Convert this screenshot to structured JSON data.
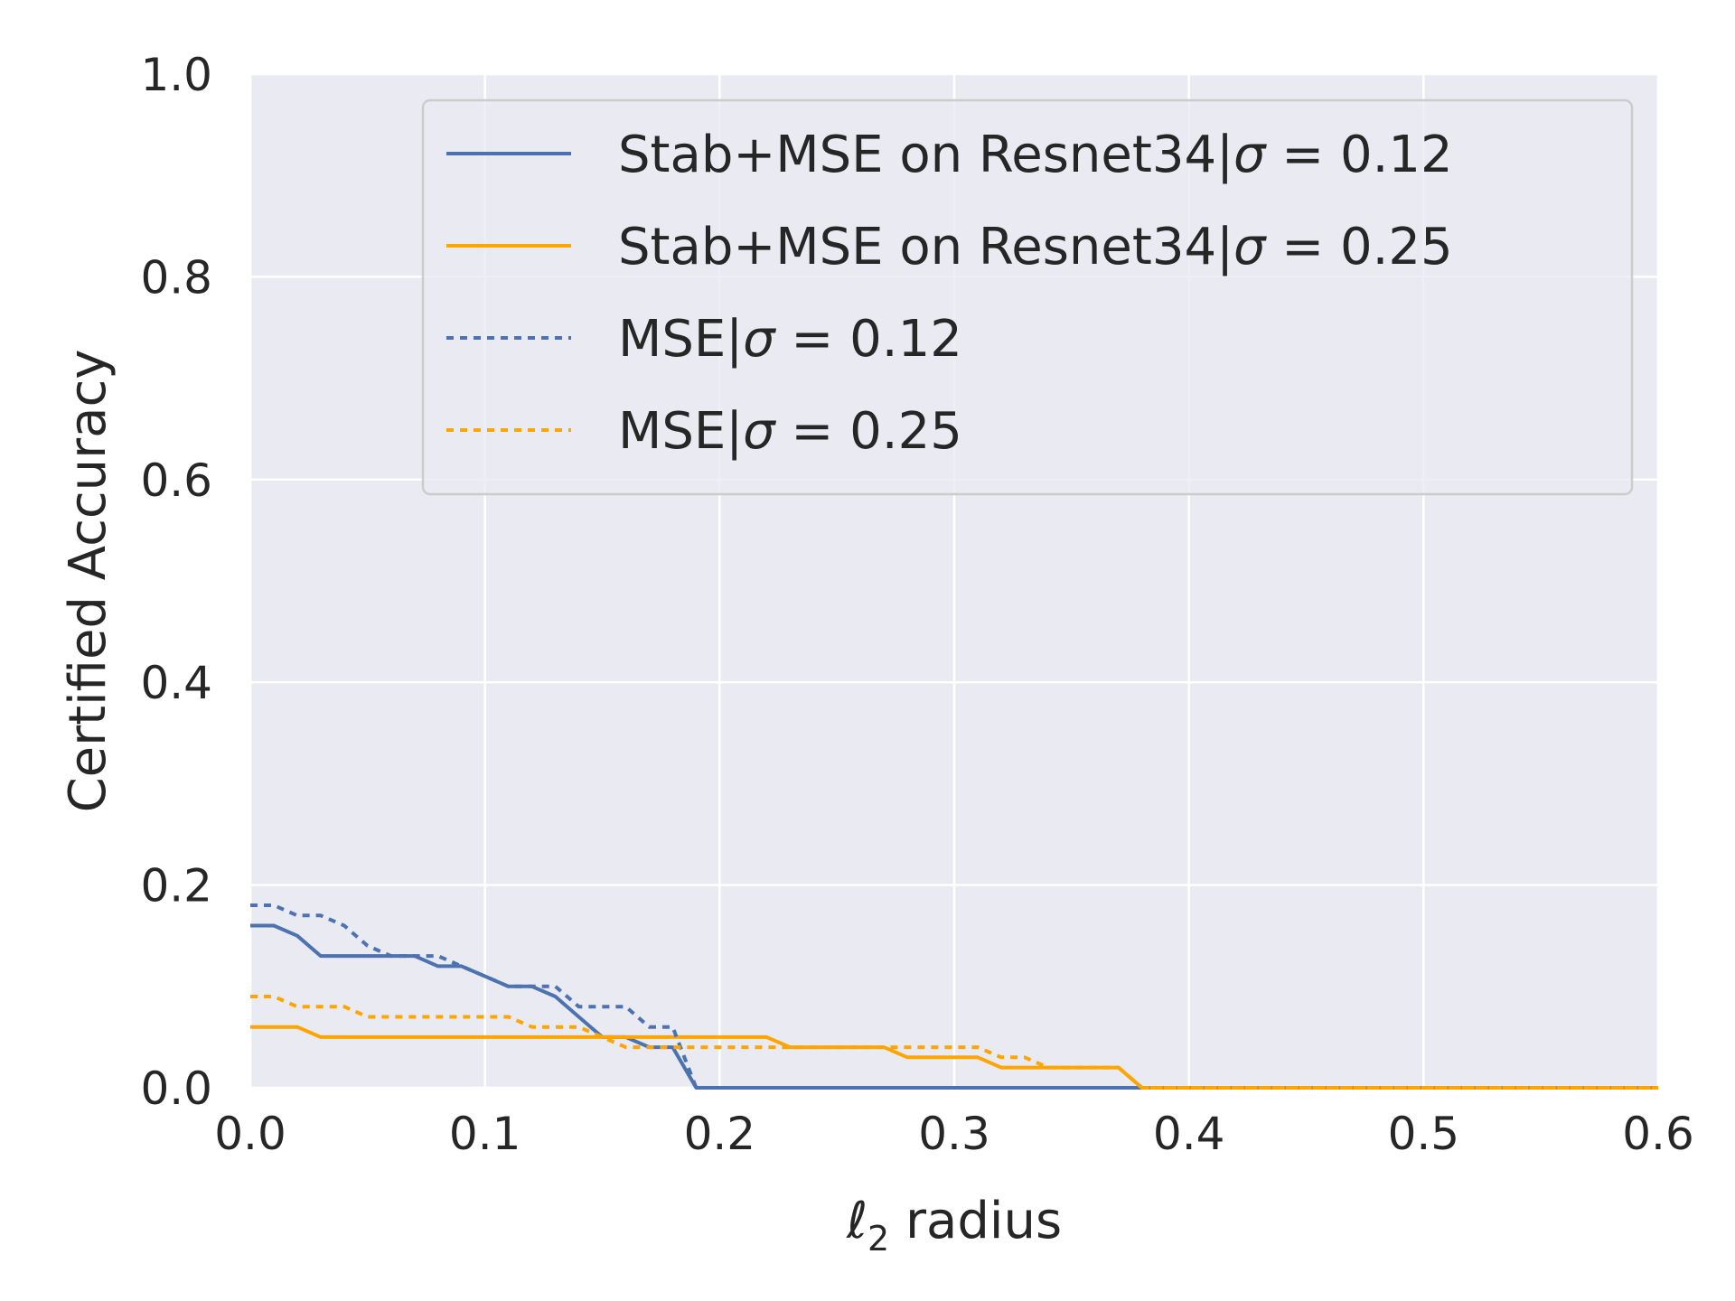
{
  "chart_data": {
    "type": "line",
    "xlabel_prefix": "ℓ",
    "xlabel_sub": "2",
    "xlabel_rest": " radius",
    "ylabel": "Certified Accuracy",
    "xlim": [
      0.0,
      0.6
    ],
    "ylim": [
      0.0,
      1.0
    ],
    "xticks": [
      "0.0",
      "0.1",
      "0.2",
      "0.3",
      "0.4",
      "0.5",
      "0.6"
    ],
    "yticks": [
      "0.0",
      "0.2",
      "0.4",
      "0.6",
      "0.8",
      "1.0"
    ],
    "grid": true,
    "legend_position": "top-right",
    "colors": {
      "blue": "#4c72b0",
      "orange": "#ffa500",
      "background": "#eaeaf2",
      "grid": "#ffffff"
    },
    "series": [
      {
        "name": "Stab+MSE on Resnet34|σ = 0.12",
        "label_prefix": "Stab+MSE on Resnet34|",
        "sigma": "0.12",
        "color": "#4c72b0",
        "style": "solid",
        "x": [
          0.0,
          0.01,
          0.02,
          0.03,
          0.04,
          0.05,
          0.06,
          0.07,
          0.08,
          0.09,
          0.1,
          0.11,
          0.12,
          0.13,
          0.14,
          0.15,
          0.16,
          0.17,
          0.18,
          0.19,
          0.6
        ],
        "y": [
          0.16,
          0.16,
          0.15,
          0.13,
          0.13,
          0.13,
          0.13,
          0.13,
          0.12,
          0.12,
          0.11,
          0.1,
          0.1,
          0.09,
          0.07,
          0.05,
          0.05,
          0.04,
          0.04,
          0.0,
          0.0
        ]
      },
      {
        "name": "Stab+MSE on Resnet34|σ = 0.25",
        "label_prefix": "Stab+MSE on Resnet34|",
        "sigma": "0.25",
        "color": "#ffa500",
        "style": "solid",
        "x": [
          0.0,
          0.02,
          0.03,
          0.15,
          0.22,
          0.23,
          0.27,
          0.28,
          0.31,
          0.32,
          0.37,
          0.38,
          0.6
        ],
        "y": [
          0.06,
          0.06,
          0.05,
          0.05,
          0.05,
          0.04,
          0.04,
          0.03,
          0.03,
          0.02,
          0.02,
          0.0,
          0.0
        ]
      },
      {
        "name": "MSE|σ = 0.12",
        "label_prefix": "MSE|",
        "sigma": "0.12",
        "color": "#4c72b0",
        "style": "dotted",
        "x": [
          0.0,
          0.01,
          0.02,
          0.03,
          0.04,
          0.05,
          0.06,
          0.07,
          0.08,
          0.09,
          0.1,
          0.11,
          0.12,
          0.13,
          0.14,
          0.15,
          0.16,
          0.17,
          0.18,
          0.19,
          0.6
        ],
        "y": [
          0.18,
          0.18,
          0.17,
          0.17,
          0.16,
          0.14,
          0.13,
          0.13,
          0.13,
          0.12,
          0.11,
          0.1,
          0.1,
          0.1,
          0.08,
          0.08,
          0.08,
          0.06,
          0.06,
          0.0,
          0.0
        ]
      },
      {
        "name": "MSE|σ = 0.25",
        "label_prefix": "MSE|",
        "sigma": "0.25",
        "color": "#ffa500",
        "style": "dotted",
        "x": [
          0.0,
          0.01,
          0.02,
          0.03,
          0.04,
          0.05,
          0.11,
          0.12,
          0.14,
          0.15,
          0.16,
          0.31,
          0.32,
          0.33,
          0.34,
          0.37,
          0.38,
          0.6
        ],
        "y": [
          0.09,
          0.09,
          0.08,
          0.08,
          0.08,
          0.07,
          0.07,
          0.06,
          0.06,
          0.05,
          0.04,
          0.04,
          0.03,
          0.03,
          0.02,
          0.02,
          0.0,
          0.0
        ]
      }
    ]
  }
}
